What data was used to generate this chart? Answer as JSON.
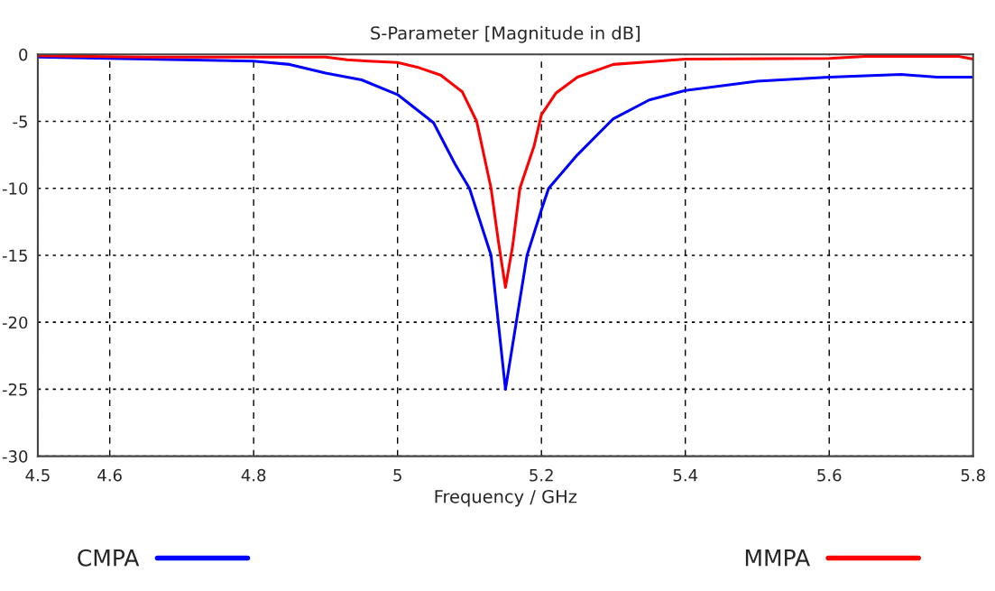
{
  "chart_data": {
    "type": "line",
    "title": "S-Parameter [Magnitude in dB]",
    "xlabel": "Frequency / GHz",
    "xlim": [
      4.5,
      5.8
    ],
    "xticks": [
      4.5,
      4.6,
      4.8,
      5,
      5.2,
      5.4,
      5.6,
      5.8
    ],
    "ylim": [
      -30,
      0
    ],
    "yticks": [
      0,
      -5,
      -10,
      -15,
      -20,
      -25,
      -30
    ],
    "grid": true,
    "legend": "bottom",
    "marker": "none",
    "line_style": "solid",
    "series": [
      {
        "name": "CMPA",
        "color": "#0000ff",
        "x": [
          4.5,
          4.7,
          4.8,
          4.85,
          4.9,
          4.95,
          5.0,
          5.05,
          5.08,
          5.1,
          5.13,
          5.15,
          5.18,
          5.2,
          5.21,
          5.25,
          5.3,
          5.35,
          5.4,
          5.5,
          5.6,
          5.7,
          5.75,
          5.8
        ],
        "values": [
          -0.2,
          -0.4,
          -0.5,
          -0.75,
          -1.4,
          -1.9,
          -3.0,
          -5.1,
          -8.2,
          -10,
          -15,
          -25,
          -15,
          -11.6,
          -10,
          -7.5,
          -4.8,
          -3.4,
          -2.7,
          -2.0,
          -1.7,
          -1.5,
          -1.7,
          -1.7
        ]
      },
      {
        "name": "MMPA",
        "color": "#ff0000",
        "x": [
          4.5,
          4.65,
          4.9,
          4.93,
          4.96,
          5.0,
          5.03,
          5.06,
          5.09,
          5.11,
          5.13,
          5.14,
          5.15,
          5.16,
          5.17,
          5.19,
          5.2,
          5.22,
          5.25,
          5.3,
          5.35,
          5.4,
          5.6,
          5.65,
          5.78,
          5.8
        ],
        "values": [
          -0.1,
          -0.2,
          -0.2,
          -0.4,
          -0.5,
          -0.6,
          -1.0,
          -1.55,
          -2.8,
          -5,
          -10,
          -13.9,
          -17.4,
          -14.3,
          -10,
          -6.8,
          -4.5,
          -2.9,
          -1.7,
          -0.75,
          -0.55,
          -0.35,
          -0.3,
          -0.15,
          -0.15,
          -0.35
        ]
      }
    ]
  }
}
